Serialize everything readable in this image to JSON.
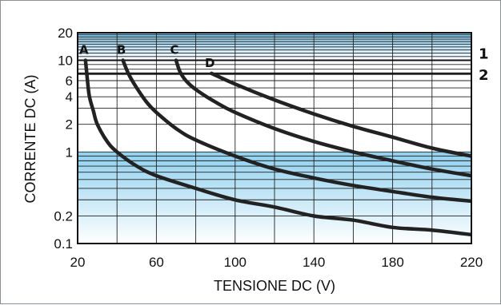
{
  "chart_data": {
    "type": "line",
    "xlabel": "TENSIONE DC (V)",
    "ylabel": "CORRENTE DC (A)",
    "xlim": [
      20,
      220
    ],
    "ylim": [
      0.1,
      20
    ],
    "y_scale": "log",
    "grid": true,
    "x_ticks": [
      "20",
      "60",
      "100",
      "140",
      "180",
      "220"
    ],
    "y_ticks": [
      {
        "value": 20,
        "label": "20"
      },
      {
        "value": 10,
        "label": "10"
      },
      {
        "value": 6,
        "label": "6"
      },
      {
        "value": 4,
        "label": "4"
      },
      {
        "value": 2,
        "label": "2"
      },
      {
        "value": 1,
        "label": "1"
      },
      {
        "value": 0.2,
        "label": "0.2"
      },
      {
        "value": 0.1,
        "label": "0.1"
      }
    ],
    "series": [
      {
        "name": "A",
        "points": [
          [
            24,
            10
          ],
          [
            25,
            6
          ],
          [
            26,
            4
          ],
          [
            28,
            2.8
          ],
          [
            30,
            2
          ],
          [
            35,
            1.3
          ],
          [
            40,
            1
          ],
          [
            50,
            0.7
          ],
          [
            60,
            0.55
          ],
          [
            80,
            0.4
          ],
          [
            100,
            0.3
          ],
          [
            120,
            0.25
          ],
          [
            140,
            0.2
          ],
          [
            160,
            0.18
          ],
          [
            180,
            0.15
          ],
          [
            200,
            0.14
          ],
          [
            220,
            0.125
          ]
        ]
      },
      {
        "name": "B",
        "points": [
          [
            43,
            10
          ],
          [
            46,
            7
          ],
          [
            50,
            5
          ],
          [
            55,
            3.5
          ],
          [
            60,
            2.7
          ],
          [
            70,
            1.8
          ],
          [
            80,
            1.35
          ],
          [
            100,
            0.9
          ],
          [
            120,
            0.65
          ],
          [
            140,
            0.52
          ],
          [
            160,
            0.43
          ],
          [
            180,
            0.37
          ],
          [
            200,
            0.32
          ],
          [
            220,
            0.29
          ]
        ]
      },
      {
        "name": "C",
        "points": [
          [
            70,
            10
          ],
          [
            72,
            7.5
          ],
          [
            75,
            6
          ],
          [
            80,
            4.8
          ],
          [
            90,
            3.5
          ],
          [
            100,
            2.7
          ],
          [
            120,
            1.8
          ],
          [
            140,
            1.3
          ],
          [
            160,
            1
          ],
          [
            180,
            0.8
          ],
          [
            200,
            0.65
          ],
          [
            220,
            0.55
          ]
        ]
      },
      {
        "name": "D",
        "points": [
          [
            88,
            7.2
          ],
          [
            100,
            5.5
          ],
          [
            120,
            3.7
          ],
          [
            140,
            2.6
          ],
          [
            160,
            1.9
          ],
          [
            180,
            1.45
          ],
          [
            200,
            1.1
          ],
          [
            220,
            0.9
          ]
        ]
      }
    ],
    "horizontal_lines": [
      {
        "label": "1",
        "y": 10
      },
      {
        "label": "2",
        "y": 7.2
      }
    ],
    "shaded_bands": [
      {
        "from": 10,
        "to": 20
      },
      {
        "from": 0.1,
        "to": 1
      }
    ],
    "colors": {
      "band": "#82c7ea",
      "grid": "#222222",
      "curve": "#222222"
    }
  }
}
